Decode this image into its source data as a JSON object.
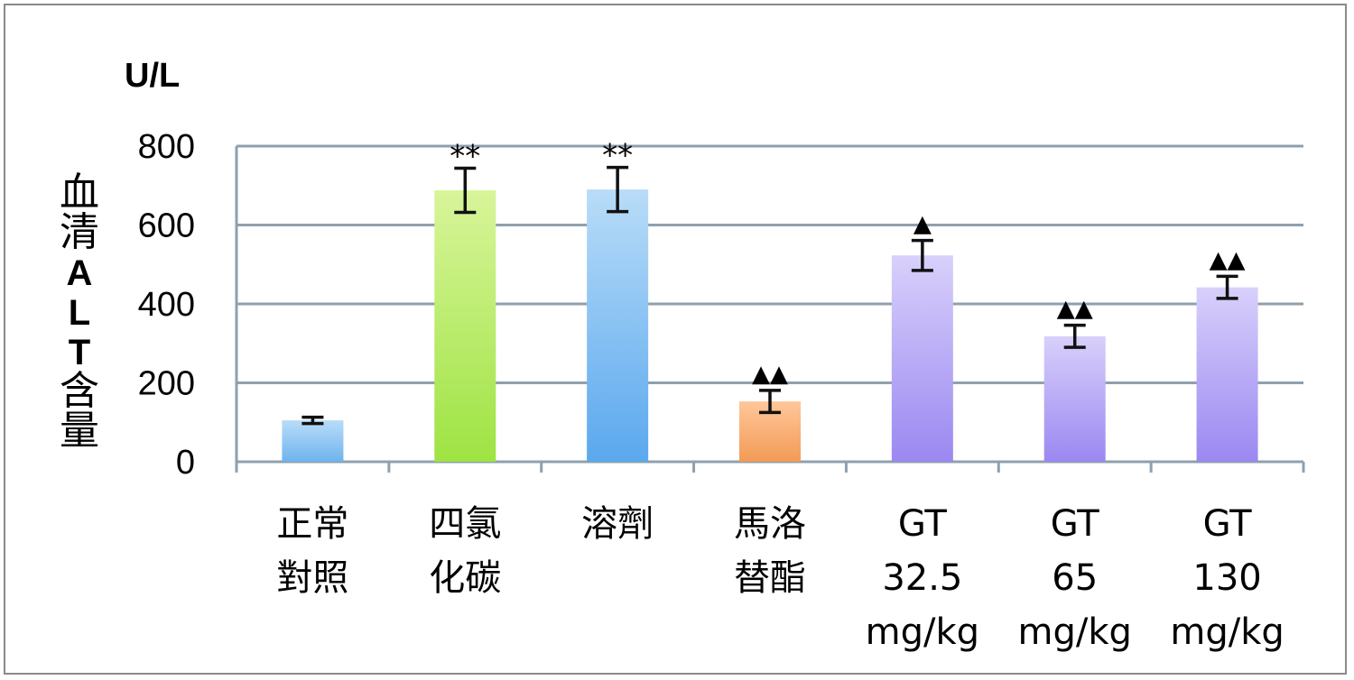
{
  "chart_data": {
    "type": "bar",
    "unit_label": "U/L",
    "ylabel": "血清ALT含量",
    "ylim": [
      0,
      800
    ],
    "yticks": [
      0,
      200,
      400,
      600,
      800
    ],
    "grid": true,
    "categories": [
      [
        "正常",
        "對照"
      ],
      [
        "四氯",
        "化碳"
      ],
      [
        "溶劑"
      ],
      [
        "馬洛",
        "替酯"
      ],
      [
        "GT",
        "32.5",
        "mg/kg"
      ],
      [
        "GT",
        "65",
        "mg/kg"
      ],
      [
        "GT",
        "130",
        "mg/kg"
      ]
    ],
    "values": [
      105,
      688,
      690,
      153,
      523,
      318,
      442
    ],
    "errors": [
      8,
      56,
      56,
      28,
      38,
      28,
      28
    ],
    "annotations": [
      "",
      "**",
      "**",
      "▲▲",
      "▲",
      "▲▲",
      "▲▲"
    ],
    "colors": [
      [
        "#b9dcf8",
        "#6fb3ee"
      ],
      [
        "#d8f59a",
        "#9ee343"
      ],
      [
        "#b9dcf8",
        "#5aa8ee"
      ],
      [
        "#ffc79a",
        "#f39a55"
      ],
      [
        "#d8d0fb",
        "#9b88f1"
      ],
      [
        "#d8d0fb",
        "#9b88f1"
      ],
      [
        "#d8d0fb",
        "#9b88f1"
      ]
    ],
    "grid_color": "#8fa0ad"
  }
}
